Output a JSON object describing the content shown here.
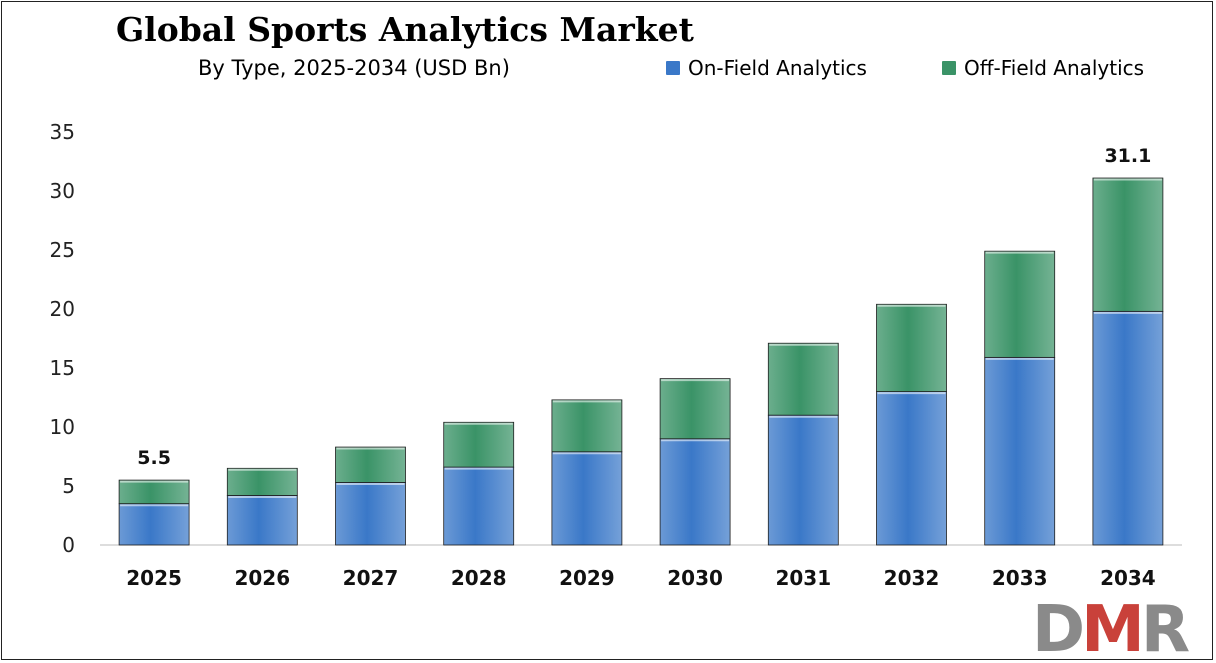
{
  "title": "Global Sports Analytics Market",
  "subtitle": "By Type, 2025-2034 (USD Bn)",
  "logo": {
    "text_d": "D",
    "text_m": "M",
    "text_r": "R"
  },
  "colors": {
    "on_field": "#3a78c8",
    "off_field": "#3a9367"
  },
  "chart_data": {
    "type": "bar",
    "stacked": true,
    "categories": [
      "2025",
      "2026",
      "2027",
      "2028",
      "2029",
      "2030",
      "2031",
      "2032",
      "2033",
      "2034"
    ],
    "series": [
      {
        "name": "On-Field Analytics",
        "values": [
          3.5,
          4.2,
          5.3,
          6.6,
          7.9,
          9.0,
          11.0,
          13.0,
          15.9,
          19.8
        ]
      },
      {
        "name": "Off-Field Analytics",
        "values": [
          2.0,
          2.3,
          3.0,
          3.8,
          4.4,
          5.1,
          6.1,
          7.4,
          9.0,
          11.3
        ]
      }
    ],
    "data_labels": [
      {
        "category": "2025",
        "text": "5.5"
      },
      {
        "category": "2034",
        "text": "31.1"
      }
    ],
    "yticks": [
      "0",
      "5",
      "10",
      "15",
      "20",
      "25",
      "30",
      "35"
    ],
    "ylim": [
      0,
      35
    ],
    "grid": false,
    "legend_position": "top-right",
    "xlabel": "",
    "ylabel": ""
  }
}
